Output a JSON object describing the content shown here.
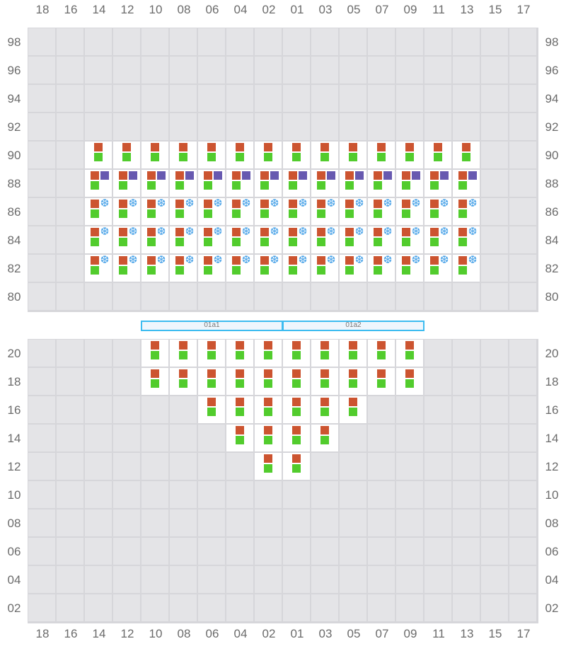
{
  "columns": [
    "18",
    "16",
    "14",
    "12",
    "10",
    "08",
    "06",
    "04",
    "02",
    "01",
    "03",
    "05",
    "07",
    "09",
    "11",
    "13",
    "15",
    "17"
  ],
  "colors": {
    "empty": "#e4e4e7",
    "occupied": "#ffffff",
    "grid": "#d6d6da",
    "orange": "#cc5430",
    "green": "#52cc2d",
    "purple": "#6759b0",
    "reefer": "#4aa3e8",
    "hatch": "#3dbcf0"
  },
  "icons": {
    "reefer": "snowflake-icon"
  },
  "hatch_covers": [
    "01a1",
    "01a2"
  ],
  "deck": {
    "rows": [
      {
        "tier": "98",
        "occupied": [],
        "kind": "plain"
      },
      {
        "tier": "96",
        "occupied": [],
        "kind": "plain"
      },
      {
        "tier": "94",
        "occupied": [],
        "kind": "plain"
      },
      {
        "tier": "92",
        "occupied": [],
        "kind": "plain"
      },
      {
        "tier": "90",
        "occupied": [
          "14",
          "12",
          "10",
          "08",
          "06",
          "04",
          "02",
          "01",
          "03",
          "05",
          "07",
          "09",
          "11",
          "13"
        ],
        "kind": "plain"
      },
      {
        "tier": "88",
        "occupied": [
          "14",
          "12",
          "10",
          "08",
          "06",
          "04",
          "02",
          "01",
          "03",
          "05",
          "07",
          "09",
          "11",
          "13"
        ],
        "kind": "purple"
      },
      {
        "tier": "86",
        "occupied": [
          "14",
          "12",
          "10",
          "08",
          "06",
          "04",
          "02",
          "01",
          "03",
          "05",
          "07",
          "09",
          "11",
          "13"
        ],
        "kind": "reefer"
      },
      {
        "tier": "84",
        "occupied": [
          "14",
          "12",
          "10",
          "08",
          "06",
          "04",
          "02",
          "01",
          "03",
          "05",
          "07",
          "09",
          "11",
          "13"
        ],
        "kind": "reefer"
      },
      {
        "tier": "82",
        "occupied": [
          "14",
          "12",
          "10",
          "08",
          "06",
          "04",
          "02",
          "01",
          "03",
          "05",
          "07",
          "09",
          "11",
          "13"
        ],
        "kind": "reefer"
      },
      {
        "tier": "80",
        "occupied": [],
        "kind": "plain"
      }
    ]
  },
  "hold": {
    "rows": [
      {
        "tier": "20",
        "occupied": [
          "10",
          "08",
          "06",
          "04",
          "02",
          "01",
          "03",
          "05",
          "07",
          "09"
        ],
        "kind": "plain"
      },
      {
        "tier": "18",
        "occupied": [
          "10",
          "08",
          "06",
          "04",
          "02",
          "01",
          "03",
          "05",
          "07",
          "09"
        ],
        "kind": "plain"
      },
      {
        "tier": "16",
        "occupied": [
          "06",
          "04",
          "02",
          "01",
          "03",
          "05"
        ],
        "kind": "plain"
      },
      {
        "tier": "14",
        "occupied": [
          "04",
          "02",
          "01",
          "03"
        ],
        "kind": "plain"
      },
      {
        "tier": "12",
        "occupied": [
          "02",
          "01"
        ],
        "kind": "plain"
      },
      {
        "tier": "10",
        "occupied": [],
        "kind": "plain"
      },
      {
        "tier": "08",
        "occupied": [],
        "kind": "plain"
      },
      {
        "tier": "06",
        "occupied": [],
        "kind": "plain"
      },
      {
        "tier": "04",
        "occupied": [],
        "kind": "plain"
      },
      {
        "tier": "02",
        "occupied": [],
        "kind": "plain"
      }
    ]
  }
}
